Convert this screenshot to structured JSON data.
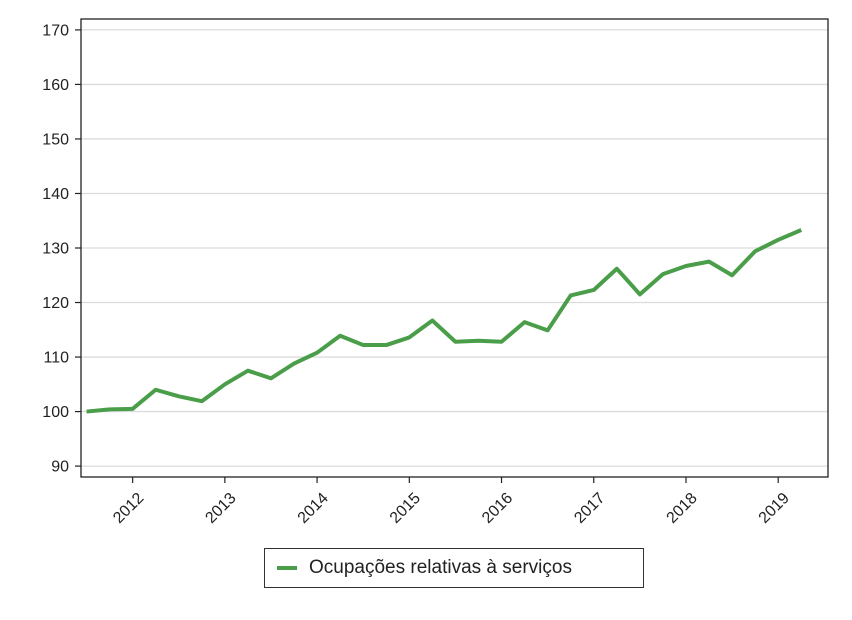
{
  "chart_data": {
    "type": "line",
    "title": "",
    "xlabel": "",
    "ylabel": "",
    "ylim": [
      88,
      172
    ],
    "yticks": [
      90,
      100,
      110,
      120,
      130,
      140,
      150,
      160,
      170
    ],
    "xticks": [
      2012,
      2013,
      2014,
      2015,
      2016,
      2017,
      2018,
      2019
    ],
    "xlim": [
      2011.44,
      2019.54
    ],
    "grid": true,
    "legend_position": "bottom",
    "series": [
      {
        "name": "Ocupações relativas à serviços",
        "color": "#4a9e4a",
        "x": [
          2011.5,
          2011.75,
          2012.0,
          2012.25,
          2012.5,
          2012.75,
          2013.0,
          2013.25,
          2013.5,
          2013.75,
          2014.0,
          2014.25,
          2014.5,
          2014.75,
          2015.0,
          2015.25,
          2015.5,
          2015.75,
          2016.0,
          2016.25,
          2016.5,
          2016.75,
          2017.0,
          2017.25,
          2017.5,
          2017.75,
          2018.0,
          2018.25,
          2018.5,
          2018.75,
          2019.0,
          2019.25
        ],
        "values": [
          100.0,
          100.4,
          100.5,
          104.0,
          102.8,
          101.9,
          105.0,
          107.5,
          106.1,
          108.8,
          110.8,
          113.9,
          112.2,
          112.2,
          113.6,
          116.7,
          112.8,
          113.0,
          112.8,
          116.4,
          114.9,
          121.3,
          122.3,
          126.2,
          121.5,
          125.2,
          126.7,
          127.5,
          125.0,
          129.4,
          131.5,
          133.3
        ]
      }
    ]
  }
}
